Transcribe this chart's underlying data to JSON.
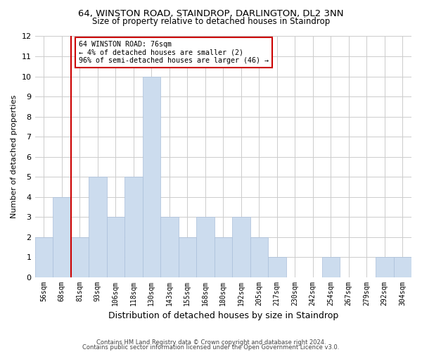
{
  "title1": "64, WINSTON ROAD, STAINDROP, DARLINGTON, DL2 3NN",
  "title2": "Size of property relative to detached houses in Staindrop",
  "xlabel": "Distribution of detached houses by size in Staindrop",
  "ylabel": "Number of detached properties",
  "categories": [
    "56sqm",
    "68sqm",
    "81sqm",
    "93sqm",
    "106sqm",
    "118sqm",
    "130sqm",
    "143sqm",
    "155sqm",
    "168sqm",
    "180sqm",
    "192sqm",
    "205sqm",
    "217sqm",
    "230sqm",
    "242sqm",
    "254sqm",
    "267sqm",
    "279sqm",
    "292sqm",
    "304sqm"
  ],
  "values": [
    2,
    4,
    2,
    5,
    3,
    5,
    10,
    3,
    2,
    3,
    2,
    3,
    2,
    1,
    0,
    0,
    1,
    0,
    0,
    1,
    1
  ],
  "bar_color": "#ccdcee",
  "bar_edgecolor": "#aabfda",
  "vline_x_idx": 1.5,
  "vline_color": "#cc0000",
  "annotation_text": "64 WINSTON ROAD: 76sqm\n← 4% of detached houses are smaller (2)\n96% of semi-detached houses are larger (46) →",
  "annotation_box_color": "#cc0000",
  "ylim": [
    0,
    12
  ],
  "yticks": [
    0,
    1,
    2,
    3,
    4,
    5,
    6,
    7,
    8,
    9,
    10,
    11,
    12
  ],
  "footer1": "Contains HM Land Registry data © Crown copyright and database right 2024.",
  "footer2": "Contains public sector information licensed under the Open Government Licence v3.0.",
  "background_color": "#ffffff",
  "grid_color": "#cccccc",
  "title1_fontsize": 9.5,
  "title2_fontsize": 8.5,
  "ylabel_fontsize": 8,
  "xlabel_fontsize": 9,
  "tick_fontsize": 7,
  "footer_fontsize": 6
}
